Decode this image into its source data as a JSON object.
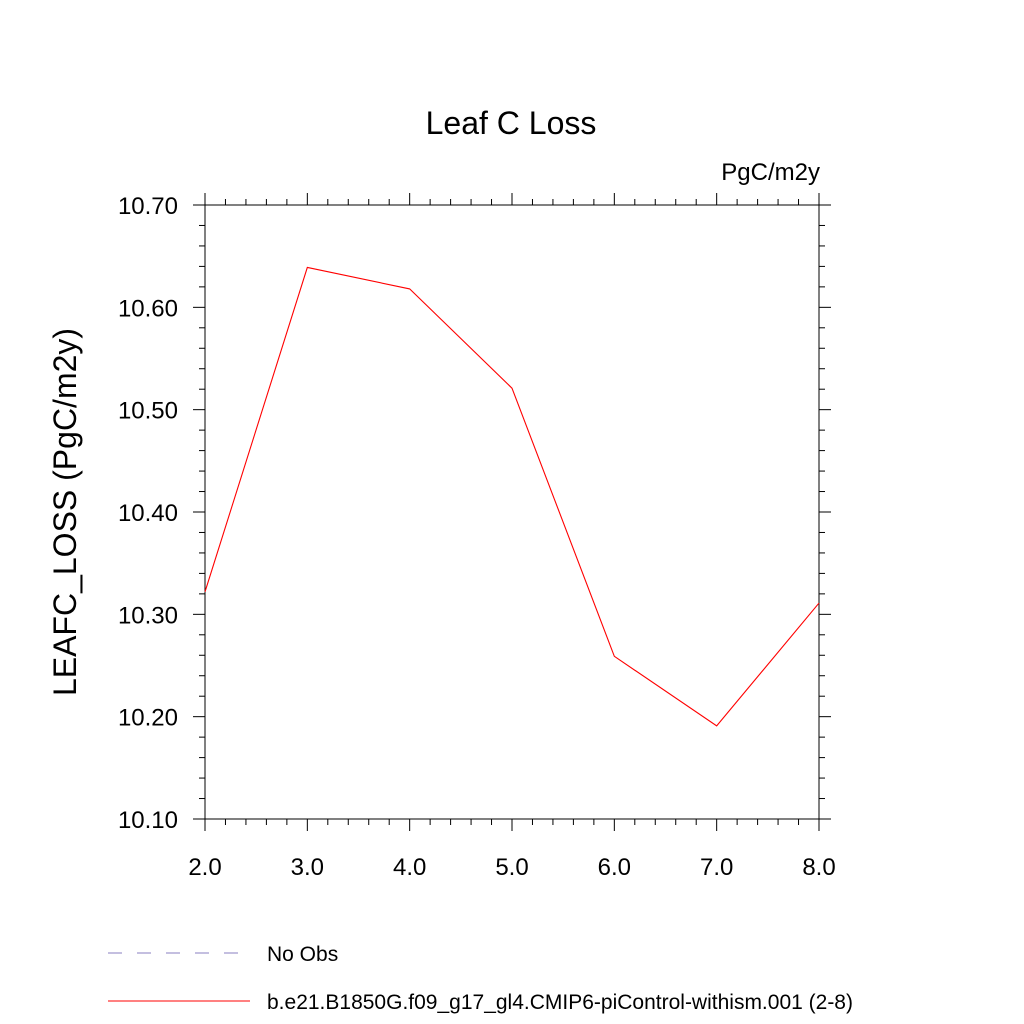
{
  "chart_data": {
    "type": "line",
    "title": "Leaf C Loss",
    "units_label": "PgC/m2y",
    "ylabel": "LEAFC_LOSS  (PgC/m2y)",
    "xlabel": "",
    "xlim": [
      2.0,
      8.0
    ],
    "ylim": [
      10.1,
      10.7
    ],
    "x_ticks": [
      "2.0",
      "3.0",
      "4.0",
      "5.0",
      "6.0",
      "7.0",
      "8.0"
    ],
    "y_ticks": [
      "10.10",
      "10.20",
      "10.30",
      "10.40",
      "10.50",
      "10.60",
      "10.70"
    ],
    "x": [
      2.0,
      3.0,
      4.0,
      5.0,
      6.0,
      7.0,
      8.0
    ],
    "series": [
      {
        "name": "b.e21.B1850G.f09_g17_gl4.CMIP6-piControl-withism.001 (2-8)",
        "color": "#ff0000",
        "values": [
          10.322,
          10.639,
          10.618,
          10.521,
          10.259,
          10.191,
          10.311
        ]
      }
    ],
    "legend": {
      "placement": "bottom",
      "entries": [
        {
          "label": "No Obs",
          "color": "#8a7fc0",
          "style": "dashed"
        },
        {
          "label": "b.e21.B1850G.f09_g17_gl4.CMIP6-piControl-withism.001 (2-8)",
          "color": "#ff0000",
          "style": "solid"
        }
      ]
    },
    "grid": false
  }
}
